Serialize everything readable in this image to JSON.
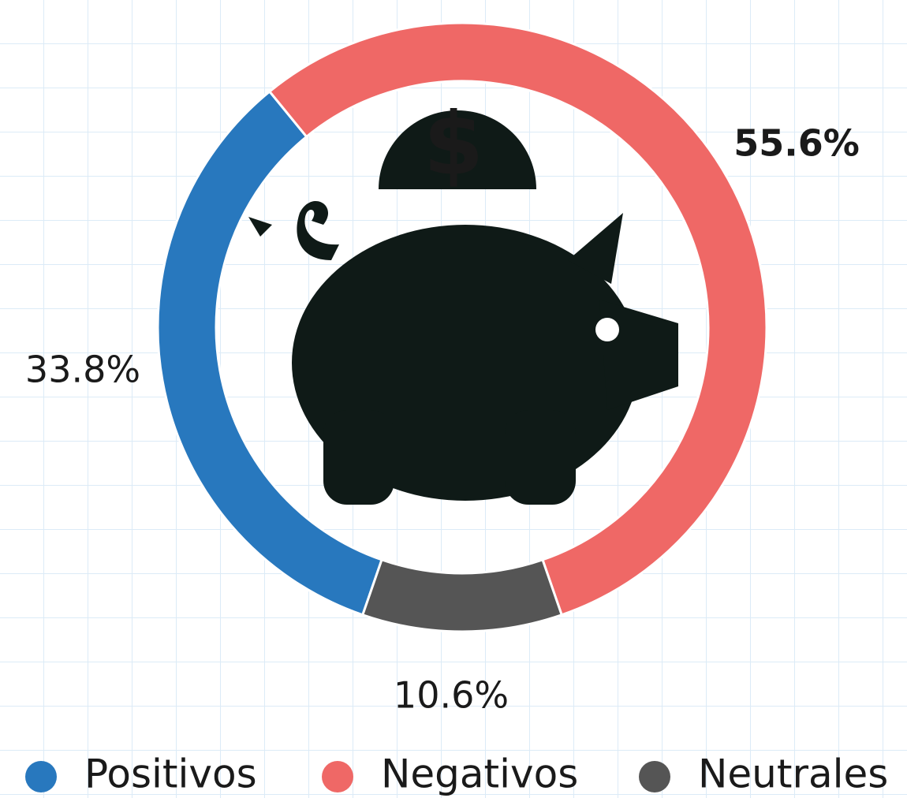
{
  "chart_data": {
    "type": "donut",
    "series": [
      {
        "name": "Positivos",
        "color": "#2878be",
        "values": [
          33.8
        ],
        "value_labels": [
          "33.8%"
        ]
      },
      {
        "name": "Negativos",
        "color": "#ef6866",
        "values": [
          55.6
        ],
        "value_labels": [
          "55.6%"
        ]
      },
      {
        "name": "Neutrales",
        "color": "#555555",
        "values": [
          10.6
        ],
        "value_labels": [
          "10.6%"
        ]
      }
    ]
  }
}
